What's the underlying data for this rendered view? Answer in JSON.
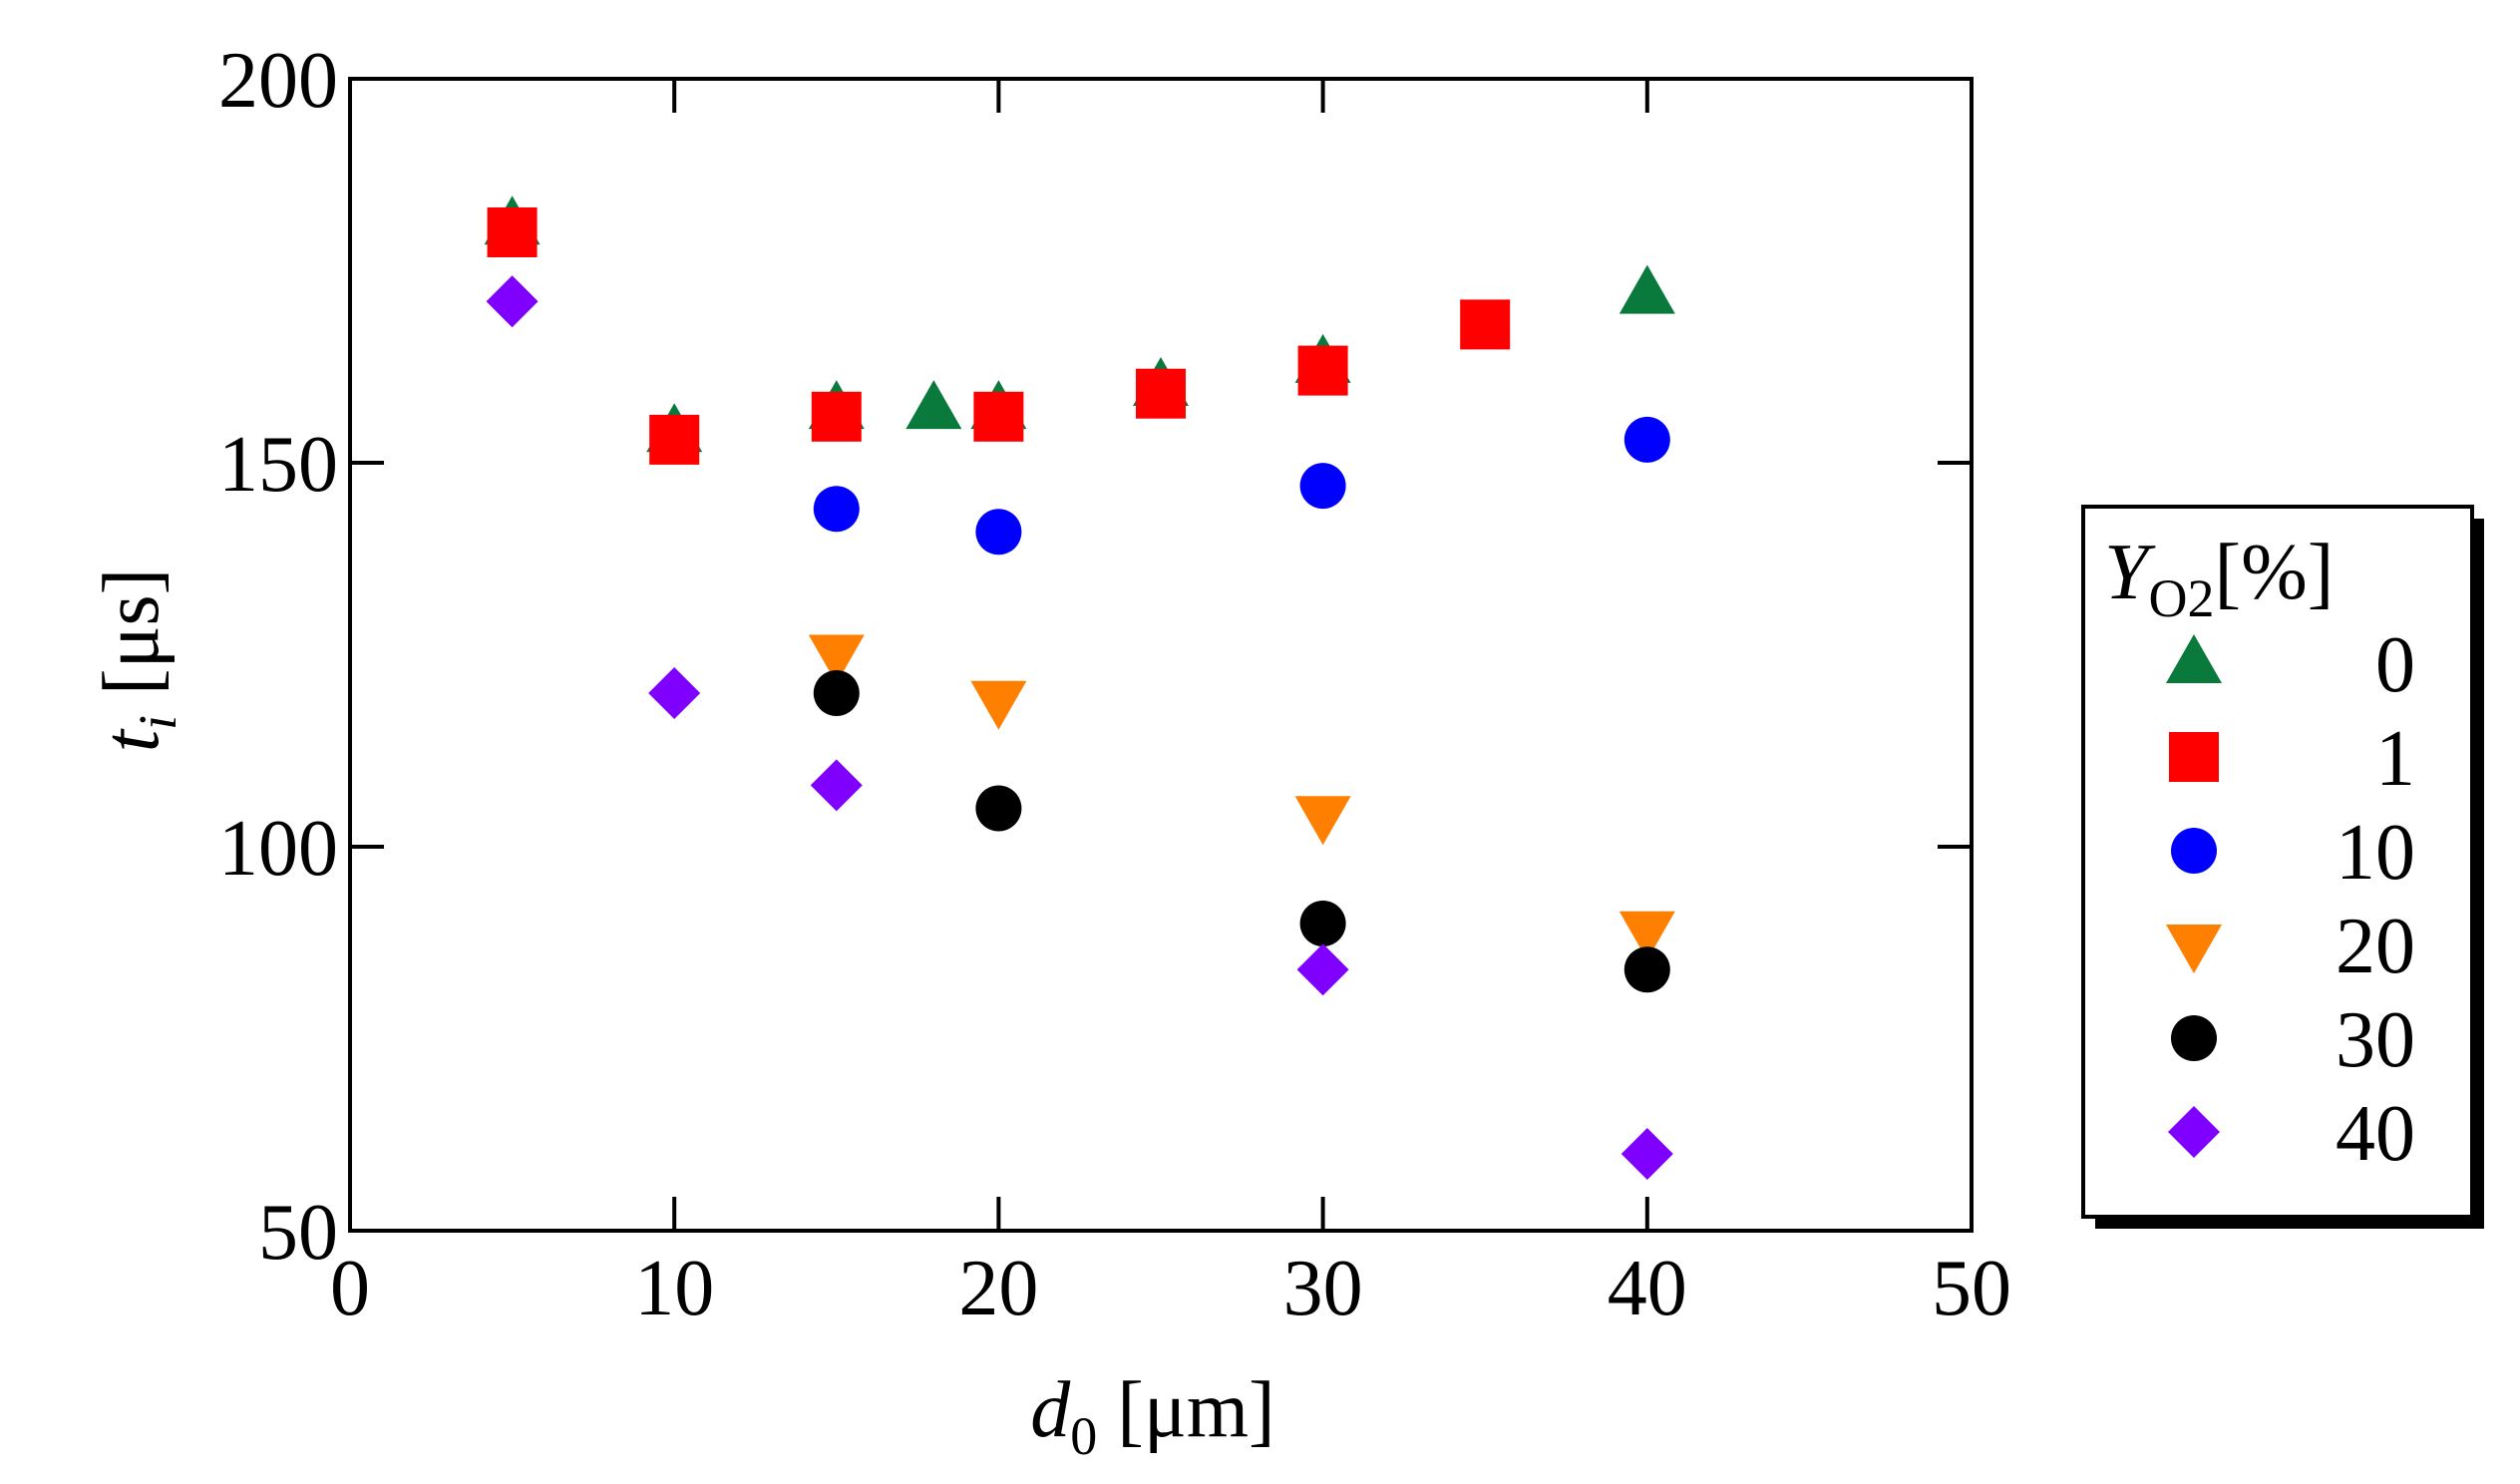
{
  "chart_data": {
    "type": "scatter",
    "title": "",
    "xlabel": {
      "italic": "d",
      "sub": "0",
      "unit": "[μm]"
    },
    "ylabel": {
      "italic": "t",
      "sub": "i",
      "unit": "[μs]"
    },
    "xlim": [
      0,
      50
    ],
    "ylim": [
      50,
      200
    ],
    "xticks": [
      0,
      10,
      20,
      30,
      40,
      50
    ],
    "yticks": [
      50,
      100,
      150,
      200
    ],
    "grid": false,
    "legend": {
      "placement": "right",
      "title_italic": "Y",
      "title_sub": "O2",
      "title_rest": "[%]"
    },
    "series": [
      {
        "name": "0",
        "marker": "triangle-up",
        "color": "#0a7a3c",
        "points": [
          [
            5,
            181
          ],
          [
            10,
            154
          ],
          [
            15,
            157
          ],
          [
            18,
            157
          ],
          [
            20,
            157
          ],
          [
            25,
            160
          ],
          [
            30,
            163
          ],
          [
            40,
            172
          ]
        ]
      },
      {
        "name": "1",
        "marker": "square",
        "color": "#ff0000",
        "points": [
          [
            5,
            180
          ],
          [
            10,
            153
          ],
          [
            15,
            156
          ],
          [
            20,
            156
          ],
          [
            25,
            159
          ],
          [
            30,
            162
          ],
          [
            35,
            168
          ]
        ]
      },
      {
        "name": "10",
        "marker": "circle",
        "color": "#0000ff",
        "points": [
          [
            15,
            144
          ],
          [
            20,
            141
          ],
          [
            30,
            147
          ],
          [
            40,
            153
          ]
        ]
      },
      {
        "name": "20",
        "marker": "triangle-down",
        "color": "#ff8000",
        "points": [
          [
            15,
            125
          ],
          [
            20,
            119
          ],
          [
            30,
            104
          ],
          [
            40,
            89
          ]
        ]
      },
      {
        "name": "30",
        "marker": "circle",
        "color": "#000000",
        "points": [
          [
            15,
            120
          ],
          [
            20,
            105
          ],
          [
            30,
            90
          ],
          [
            40,
            84
          ]
        ]
      },
      {
        "name": "40",
        "marker": "diamond",
        "color": "#8000ff",
        "points": [
          [
            5,
            171
          ],
          [
            10,
            120
          ],
          [
            15,
            108
          ],
          [
            30,
            84
          ],
          [
            40,
            60
          ]
        ]
      }
    ]
  }
}
